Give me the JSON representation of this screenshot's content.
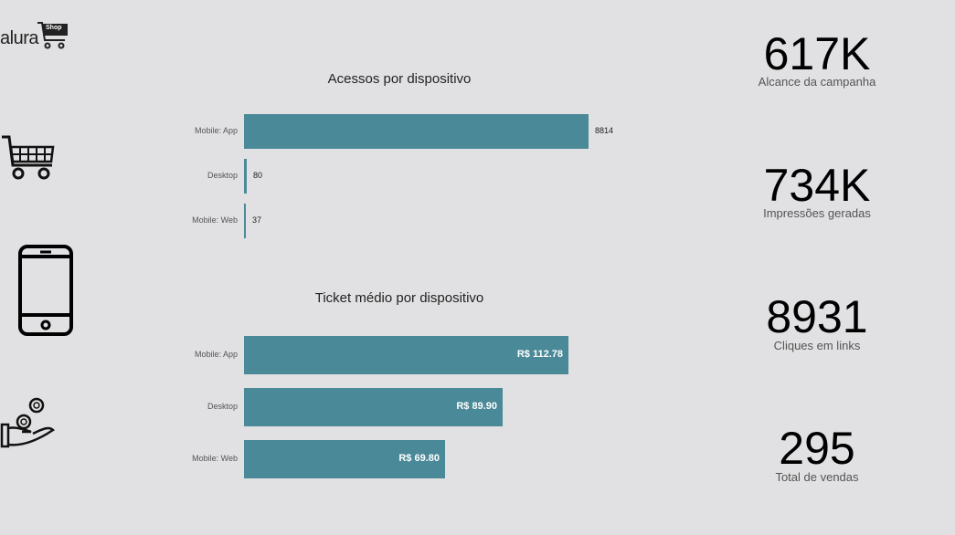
{
  "logo": {
    "text": "alura",
    "badge": "Shop"
  },
  "icons": [
    "cart-icon",
    "smartphone-icon",
    "hand-coins-icon"
  ],
  "charts": [
    {
      "title": "Acessos por dispositivo",
      "chart_data": {
        "type": "bar",
        "orientation": "horizontal",
        "categories": [
          "Mobile: App",
          "Desktop",
          "Mobile: Web"
        ],
        "values": [
          8814,
          80,
          37
        ],
        "labels": [
          "8814",
          "80",
          "37"
        ]
      }
    },
    {
      "title": "Ticket médio por dispositivo",
      "chart_data": {
        "type": "bar",
        "orientation": "horizontal",
        "categories": [
          "Mobile: App",
          "Desktop",
          "Mobile: Web"
        ],
        "values": [
          112.78,
          89.9,
          69.8
        ],
        "labels": [
          "R$ 112.78",
          "R$ 89.90",
          "R$ 69.80"
        ]
      }
    }
  ],
  "kpis": [
    {
      "value": "617K",
      "label": "Alcance da campanha"
    },
    {
      "value": "734K",
      "label": "Impressões geradas"
    },
    {
      "value": "8931",
      "label": "Cliques em links"
    },
    {
      "value": "295",
      "label": "Total de vendas"
    }
  ],
  "colors": {
    "bar": "#4a8998",
    "background": "#e1e0e2"
  }
}
